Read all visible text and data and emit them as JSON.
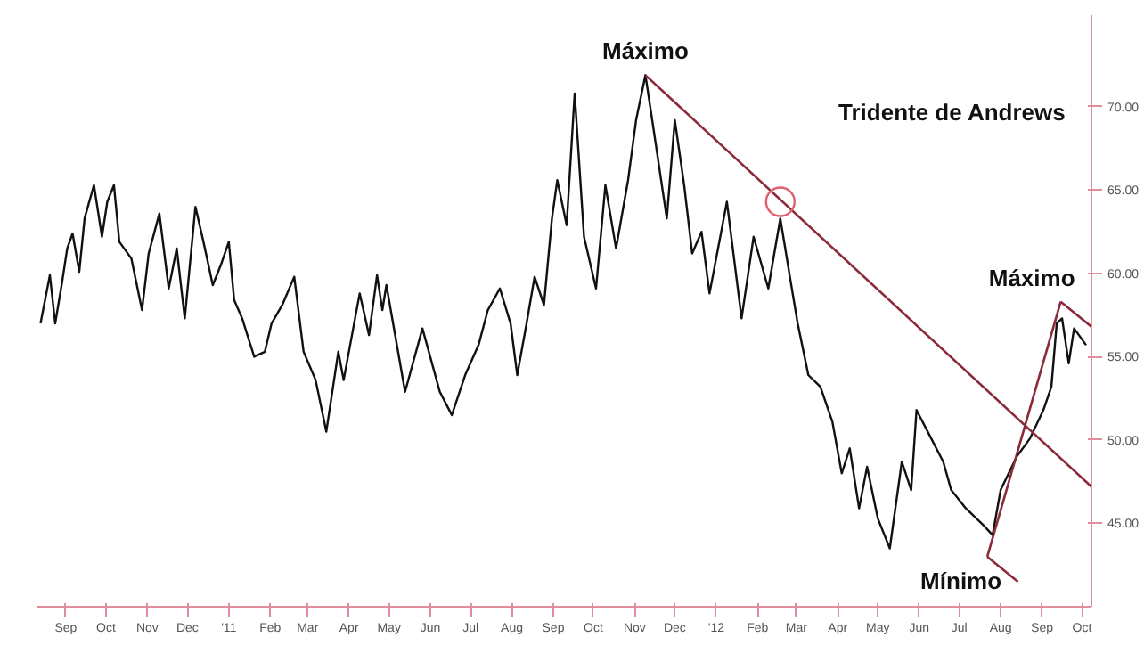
{
  "chart_data": {
    "type": "line",
    "x": [
      "2010-08-13",
      "2010-08-20",
      "2010-08-24",
      "2010-08-29",
      "2010-09-02",
      "2010-09-06",
      "2010-09-11",
      "2010-09-15",
      "2010-09-22",
      "2010-09-28",
      "2010-10-02",
      "2010-10-07",
      "2010-10-11",
      "2010-10-20",
      "2010-10-28",
      "2010-11-02",
      "2010-11-10",
      "2010-11-17",
      "2010-11-23",
      "2010-11-29",
      "2010-12-07",
      "2010-12-13",
      "2010-12-20",
      "2010-12-26",
      "2011-01-01",
      "2011-01-05",
      "2011-01-11",
      "2011-01-20",
      "2011-01-28",
      "2011-02-02",
      "2011-02-10",
      "2011-02-19",
      "2011-02-26",
      "2011-03-07",
      "2011-03-15",
      "2011-03-24",
      "2011-03-28",
      "2011-04-09",
      "2011-04-16",
      "2011-04-22",
      "2011-04-26",
      "2011-04-29",
      "2011-05-13",
      "2011-05-26",
      "2011-06-08",
      "2011-06-17",
      "2011-06-27",
      "2011-07-07",
      "2011-07-14",
      "2011-07-23",
      "2011-07-31",
      "2011-08-05",
      "2011-08-12",
      "2011-08-18",
      "2011-08-25",
      "2011-08-31",
      "2011-09-04",
      "2011-09-11",
      "2011-09-17",
      "2011-09-24",
      "2011-10-03",
      "2011-10-10",
      "2011-10-18",
      "2011-10-27",
      "2011-11-02",
      "2011-11-09",
      "2011-11-15",
      "2011-11-25",
      "2011-12-01",
      "2011-12-08",
      "2011-12-14",
      "2011-12-21",
      "2011-12-27",
      "2012-01-09",
      "2012-01-20",
      "2012-01-29",
      "2012-02-09",
      "2012-02-18",
      "2012-02-26",
      "2012-03-02",
      "2012-03-10",
      "2012-03-19",
      "2012-03-28",
      "2012-04-04",
      "2012-04-10",
      "2012-04-17",
      "2012-04-23",
      "2012-05-01",
      "2012-05-10",
      "2012-05-19",
      "2012-05-26",
      "2012-05-30",
      "2012-06-10",
      "2012-06-19",
      "2012-06-25",
      "2012-07-06",
      "2012-07-19",
      "2012-07-26",
      "2012-08-01",
      "2012-08-13",
      "2012-08-23",
      "2012-09-02",
      "2012-09-08",
      "2012-09-12",
      "2012-09-16",
      "2012-09-21",
      "2012-09-25",
      "2012-10-04"
    ],
    "series": [
      {
        "color": "#111111",
        "values": [
          57.0,
          59.9,
          57.0,
          59.4,
          61.5,
          62.4,
          60.1,
          63.3,
          65.3,
          62.2,
          64.3,
          65.3,
          61.9,
          60.9,
          57.8,
          61.2,
          63.6,
          59.1,
          61.5,
          57.3,
          64.0,
          61.9,
          59.3,
          60.5,
          61.9,
          58.4,
          57.3,
          55.0,
          55.3,
          57.0,
          58.1,
          59.8,
          55.3,
          53.6,
          50.5,
          55.3,
          53.6,
          58.8,
          56.3,
          59.9,
          57.8,
          59.3,
          52.9,
          56.7,
          52.9,
          51.5,
          53.9,
          55.7,
          57.8,
          59.1,
          57.0,
          53.9,
          57.0,
          59.8,
          58.1,
          63.3,
          65.6,
          62.9,
          70.8,
          62.2,
          59.1,
          65.3,
          61.5,
          65.6,
          69.2,
          71.9,
          68.7,
          63.3,
          69.2,
          65.3,
          61.2,
          62.5,
          58.8,
          64.3,
          57.3,
          62.2,
          59.1,
          63.3,
          59.4,
          57.0,
          53.9,
          53.2,
          51.1,
          48.0,
          49.5,
          45.9,
          48.4,
          45.3,
          43.5,
          48.7,
          47.0,
          51.8,
          50.1,
          48.7,
          47.0,
          45.9,
          44.9,
          44.3,
          47.0,
          49.0,
          50.1,
          51.8,
          53.2,
          57.0,
          57.3,
          54.6,
          56.7,
          55.7
        ]
      },
      {
        "type": "line",
        "color": "#8b2a3a",
        "x": [
          "2011-11-09",
          "2012-10-08"
        ],
        "values": [
          71.9,
          47.2
        ]
      },
      {
        "type": "line",
        "color": "#8b2a3a",
        "x": [
          "2012-07-22",
          "2012-09-15"
        ],
        "values": [
          43.0,
          58.3
        ]
      },
      {
        "type": "line",
        "color": "#8b2a3a",
        "x": [
          "2012-09-15",
          "2012-10-08"
        ],
        "values": [
          58.3,
          56.8
        ]
      },
      {
        "type": "line",
        "color": "#8b2a3a",
        "x": [
          "2012-07-22",
          "2012-08-14"
        ],
        "values": [
          43.0,
          41.5
        ]
      },
      {
        "type": "scatter",
        "marker": "circle",
        "color": "#e06070",
        "x": [
          "2012-02-18"
        ],
        "values": [
          64.3
        ]
      }
    ],
    "xlim": [
      "2010-08-10",
      "2012-10-08"
    ],
    "ylim": [
      40.0,
      75.5
    ],
    "xticks": [
      {
        "value": "2010-09-01",
        "label": "Sep"
      },
      {
        "value": "2010-10-01",
        "label": "Oct"
      },
      {
        "value": "2010-11-01",
        "label": "Nov"
      },
      {
        "value": "2010-12-01",
        "label": "Dec"
      },
      {
        "value": "2011-01-01",
        "label": "'11"
      },
      {
        "value": "2011-02-01",
        "label": "Feb"
      },
      {
        "value": "2011-03-01",
        "label": "Mar"
      },
      {
        "value": "2011-04-01",
        "label": "Apr"
      },
      {
        "value": "2011-05-01",
        "label": "May"
      },
      {
        "value": "2011-06-01",
        "label": "Jun"
      },
      {
        "value": "2011-07-01",
        "label": "Jul"
      },
      {
        "value": "2011-08-01",
        "label": "Aug"
      },
      {
        "value": "2011-09-01",
        "label": "Sep"
      },
      {
        "value": "2011-10-01",
        "label": "Oct"
      },
      {
        "value": "2011-11-01",
        "label": "Nov"
      },
      {
        "value": "2011-12-01",
        "label": "Dec"
      },
      {
        "value": "2012-01-01",
        "label": "'12"
      },
      {
        "value": "2012-02-01",
        "label": "Feb"
      },
      {
        "value": "2012-03-01",
        "label": "Mar"
      },
      {
        "value": "2012-04-01",
        "label": "Apr"
      },
      {
        "value": "2012-05-01",
        "label": "May"
      },
      {
        "value": "2012-06-01",
        "label": "Jun"
      },
      {
        "value": "2012-07-01",
        "label": "Jul"
      },
      {
        "value": "2012-08-01",
        "label": "Aug"
      },
      {
        "value": "2012-09-01",
        "label": "Sep"
      },
      {
        "value": "2012-10-01",
        "label": "Oct"
      }
    ],
    "yticks": [
      {
        "value": 45,
        "label": "45.00"
      },
      {
        "value": 50,
        "label": "50.00"
      },
      {
        "value": 55,
        "label": "55.00"
      },
      {
        "value": 60,
        "label": "60.00"
      },
      {
        "value": 65,
        "label": "65.00"
      },
      {
        "value": 70,
        "label": "70.00"
      }
    ],
    "annotations": [
      {
        "text": "Máximo",
        "x": "2011-11-09",
        "y": 71.9
      },
      "Tridente de Andrews",
      {
        "text": "Máximo",
        "x": "2012-09-15",
        "y": 58.3
      },
      {
        "text": "Mínimo",
        "x": "2012-07-22",
        "y": 43.0
      }
    ],
    "grid": false
  }
}
